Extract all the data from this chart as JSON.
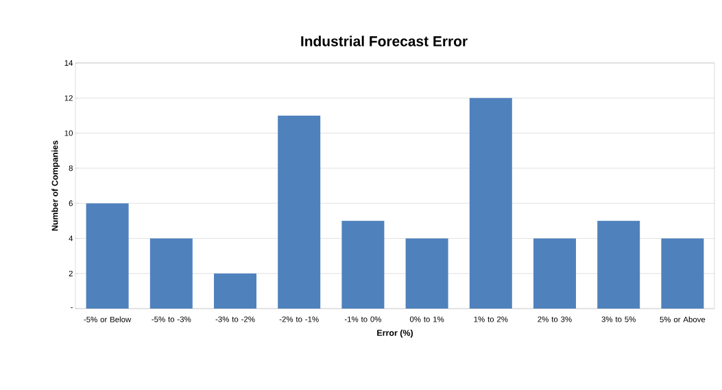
{
  "chart_data": {
    "type": "bar",
    "title": "Industrial Forecast Error",
    "xlabel": "Error (%)",
    "ylabel": "Number of Companies",
    "categories": [
      "-5% or Below",
      "-5% to -3%",
      "-3% to -2%",
      "-2% to -1%",
      "-1% to 0%",
      "0% to 1%",
      "1% to 2%",
      "2% to 3%",
      "3% to 5%",
      "5% or Above"
    ],
    "values": [
      6,
      4,
      2,
      11,
      5,
      4,
      12,
      4,
      5,
      4
    ],
    "color": "#4f81bd",
    "ylim": [
      0,
      14
    ],
    "yticks": [
      {
        "value": 0,
        "label": "-"
      },
      2,
      4,
      6,
      8,
      10,
      12,
      14
    ],
    "grid": "y"
  }
}
